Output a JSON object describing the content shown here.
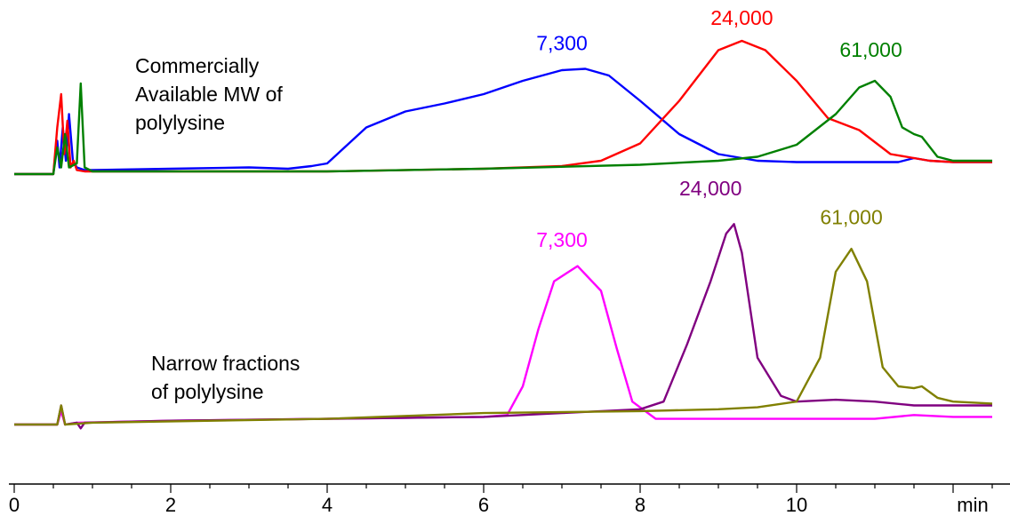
{
  "chart_data": {
    "type": "line",
    "xlabel": "min",
    "xlim": [
      0,
      12.5
    ],
    "x_ticks": [
      "0",
      "2",
      "4",
      "6",
      "8",
      "10"
    ],
    "panels": [
      {
        "label_lines": [
          "Commercially",
          "Available  MW of",
          "polylysine"
        ],
        "series": [
          {
            "color": "#0000ff",
            "x": [
              0,
              0.5,
              0.55,
              0.58,
              0.62,
              0.66,
              0.7,
              0.75,
              0.8,
              0.9,
              1.0,
              2.0,
              3.0,
              3.5,
              3.8,
              4.0,
              4.5,
              5.0,
              5.5,
              6.0,
              6.5,
              7.0,
              7.3,
              7.6,
              8.0,
              8.5,
              9.0,
              9.5,
              10.0,
              11.0,
              11.3,
              11.5,
              11.7,
              12.0,
              12.5
            ],
            "y": [
              0,
              0,
              0.25,
              0.05,
              0.35,
              0.1,
              0.45,
              0.1,
              0.05,
              0.03,
              0.03,
              0.04,
              0.05,
              0.04,
              0.06,
              0.08,
              0.35,
              0.47,
              0.53,
              0.6,
              0.7,
              0.78,
              0.79,
              0.74,
              0.55,
              0.3,
              0.15,
              0.1,
              0.09,
              0.09,
              0.09,
              0.12,
              0.1,
              0.09,
              0.09
            ]
          },
          {
            "color": "#ff0000",
            "x": [
              0,
              0.5,
              0.55,
              0.6,
              0.64,
              0.68,
              0.72,
              0.76,
              0.8,
              0.9,
              1.0,
              4.0,
              6.0,
              7.0,
              7.5,
              8.0,
              8.5,
              9.0,
              9.3,
              9.6,
              10.0,
              10.4,
              10.8,
              11.2,
              11.5,
              11.7,
              12.0,
              12.5
            ],
            "y": [
              0,
              0,
              0.35,
              0.6,
              0.15,
              0.4,
              0.05,
              0.1,
              0.03,
              0.02,
              0.02,
              0.02,
              0.04,
              0.06,
              0.1,
              0.23,
              0.55,
              0.93,
              1.0,
              0.93,
              0.7,
              0.42,
              0.33,
              0.15,
              0.12,
              0.1,
              0.09,
              0.09
            ]
          },
          {
            "color": "#008000",
            "x": [
              0,
              0.5,
              0.55,
              0.6,
              0.65,
              0.7,
              0.8,
              0.85,
              0.9,
              1.0,
              4.0,
              6.0,
              8.0,
              9.0,
              9.5,
              10.0,
              10.5,
              10.8,
              11.0,
              11.2,
              11.35,
              11.5,
              11.6,
              11.8,
              12.0,
              12.5
            ],
            "y": [
              0,
              0,
              0.2,
              0.05,
              0.3,
              0.05,
              0.08,
              0.68,
              0.05,
              0.02,
              0.02,
              0.04,
              0.07,
              0.1,
              0.13,
              0.22,
              0.45,
              0.65,
              0.7,
              0.58,
              0.35,
              0.3,
              0.28,
              0.13,
              0.1,
              0.1
            ]
          }
        ],
        "peak_labels": [
          {
            "text": "7,300",
            "x": 7.0,
            "y": 0.93,
            "color": "#0000ff"
          },
          {
            "text": "24,000",
            "x": 9.3,
            "y": 1.12,
            "color": "#ff0000"
          },
          {
            "text": "61,000",
            "x": 10.95,
            "y": 0.88,
            "color": "#008000"
          }
        ]
      },
      {
        "label_lines": [
          "Narrow fractions",
          "of polylysine"
        ],
        "series": [
          {
            "color": "#ff00ff",
            "x": [
              0,
              0.55,
              0.6,
              0.65,
              0.8,
              2.0,
              4.0,
              6.0,
              6.3,
              6.5,
              6.7,
              6.9,
              7.2,
              7.5,
              7.7,
              7.9,
              8.2,
              9.0,
              10.0,
              11.0,
              11.5,
              12.0,
              12.5
            ],
            "y": [
              0,
              0,
              0.07,
              0,
              0.01,
              0.02,
              0.03,
              0.04,
              0.05,
              0.2,
              0.5,
              0.75,
              0.83,
              0.7,
              0.4,
              0.12,
              0.03,
              0.03,
              0.03,
              0.03,
              0.05,
              0.04,
              0.04
            ]
          },
          {
            "color": "#800080",
            "x": [
              0,
              0.55,
              0.6,
              0.65,
              0.8,
              0.85,
              0.9,
              2.0,
              4.0,
              6.0,
              7.0,
              8.0,
              8.3,
              8.6,
              8.9,
              9.1,
              9.2,
              9.3,
              9.5,
              9.8,
              10.0,
              10.5,
              11.0,
              11.5,
              12.0,
              12.5
            ],
            "y": [
              0,
              0,
              0.1,
              0,
              0.01,
              -0.02,
              0.01,
              0.02,
              0.03,
              0.04,
              0.06,
              0.08,
              0.12,
              0.42,
              0.75,
              1.0,
              1.05,
              0.9,
              0.35,
              0.15,
              0.12,
              0.13,
              0.12,
              0.1,
              0.1,
              0.1
            ]
          },
          {
            "color": "#808000",
            "x": [
              0,
              0.55,
              0.6,
              0.65,
              1.0,
              4.0,
              6.0,
              8.0,
              9.0,
              9.5,
              10.0,
              10.3,
              10.5,
              10.7,
              10.9,
              11.1,
              11.3,
              11.5,
              11.6,
              11.8,
              12.0,
              12.5
            ],
            "y": [
              0,
              0,
              0.1,
              0,
              0.01,
              0.03,
              0.06,
              0.07,
              0.08,
              0.09,
              0.12,
              0.35,
              0.8,
              0.92,
              0.75,
              0.3,
              0.2,
              0.19,
              0.2,
              0.14,
              0.12,
              0.11
            ]
          }
        ],
        "peak_labels": [
          {
            "text": "7,300",
            "x": 7.0,
            "y": 0.93,
            "color": "#ff00ff"
          },
          {
            "text": "24,000",
            "x": 8.9,
            "y": 1.2,
            "color": "#800080"
          },
          {
            "text": "61,000",
            "x": 10.7,
            "y": 1.05,
            "color": "#808000"
          }
        ]
      }
    ]
  }
}
